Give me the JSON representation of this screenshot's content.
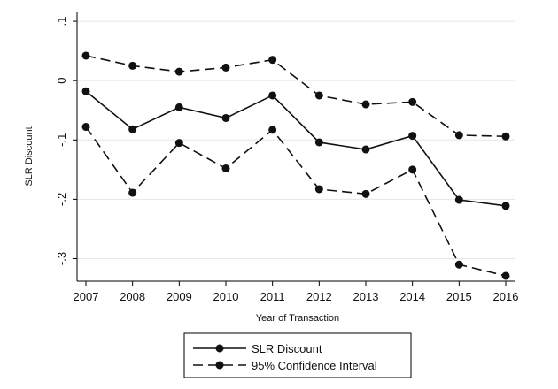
{
  "chart_data": {
    "type": "line",
    "xlabel": "Year of Transaction",
    "ylabel": "SLR Discount",
    "categories": [
      "2007",
      "2008",
      "2009",
      "2010",
      "2011",
      "2012",
      "2013",
      "2014",
      "2015",
      "2016"
    ],
    "y_ticks": [
      ".1",
      "0",
      "-.1",
      "-.2",
      "-.3"
    ],
    "y_tick_values": [
      0.1,
      0,
      -0.1,
      -0.2,
      -0.3
    ],
    "ylim": [
      -0.338,
      0.115
    ],
    "grid": true,
    "series": [
      {
        "name": "SLR Discount",
        "style": "solid",
        "values": [
          -0.018,
          -0.082,
          -0.045,
          -0.063,
          -0.025,
          -0.104,
          -0.116,
          -0.093,
          -0.201,
          -0.211
        ]
      },
      {
        "name": "95% Confidence Interval",
        "style": "dashed",
        "values": [
          0.042,
          0.025,
          0.015,
          0.022,
          0.035,
          -0.025,
          -0.04,
          -0.036,
          -0.092,
          -0.094
        ]
      },
      {
        "name": "",
        "style": "dashed",
        "values": [
          -0.078,
          -0.189,
          -0.105,
          -0.148,
          -0.083,
          -0.183,
          -0.191,
          -0.15,
          -0.31,
          -0.329
        ]
      }
    ],
    "legend": {
      "position": "bottom-center",
      "entries": [
        "SLR Discount",
        "95% Confidence Interval"
      ]
    },
    "colors": {
      "line": "#111111",
      "grid": "#e6e6e6",
      "axis": "#000000"
    }
  }
}
